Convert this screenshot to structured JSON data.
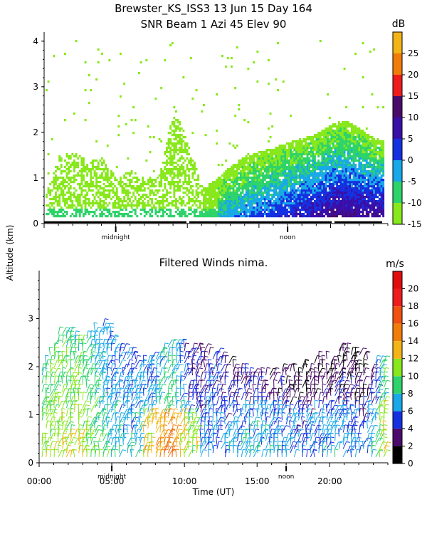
{
  "header": {
    "title_line1": "Brewster_KS_ISS3  13 Jun 15 Day 164",
    "title_line2": "SNR Beam  1 Azi   45 Elev 90"
  },
  "shared": {
    "ylabel": "Altitude (km)",
    "xlabel": "Time (UT)",
    "xticks": [
      {
        "v": 0,
        "label": "00:00"
      },
      {
        "v": 5,
        "label": "05:00"
      },
      {
        "v": 10,
        "label": "10:00"
      },
      {
        "v": 15,
        "label": "15:00"
      },
      {
        "v": 20,
        "label": "20:00"
      }
    ],
    "local_marks": [
      {
        "v": 5,
        "label": "midnight"
      },
      {
        "v": 17,
        "label": "noon"
      }
    ]
  },
  "chart_data": [
    {
      "type": "heatmap",
      "title": "SNR Beam  1 Azi   45 Elev 90",
      "xlim": [
        0,
        24
      ],
      "ylim": [
        0,
        4.2
      ],
      "yticks": [
        0,
        1,
        2,
        3,
        4
      ],
      "colorbar": {
        "unit": "dB",
        "min": -15,
        "max": 30,
        "ticks": [
          -15,
          -10,
          -5,
          0,
          5,
          10,
          15,
          20,
          25
        ],
        "bands": [
          {
            "from": -15,
            "to": -10,
            "color": "#88e81c"
          },
          {
            "from": -10,
            "to": -5,
            "color": "#2ed36a"
          },
          {
            "from": -5,
            "to": 0,
            "color": "#19a8e8"
          },
          {
            "from": 0,
            "to": 5,
            "color": "#1530e0"
          },
          {
            "from": 5,
            "to": 10,
            "color": "#3a0fa8"
          },
          {
            "from": 10,
            "to": 15,
            "color": "#4a0b6a"
          },
          {
            "from": 15,
            "to": 20,
            "color": "#ee1c1c"
          },
          {
            "from": 20,
            "to": 25,
            "color": "#f07d0a"
          },
          {
            "from": 25,
            "to": 30,
            "color": "#f2b416"
          }
        ]
      },
      "echo_top_km": [
        {
          "t": 0,
          "h": 0.6
        },
        {
          "t": 1,
          "h": 1.5
        },
        {
          "t": 2,
          "h": 1.6
        },
        {
          "t": 3,
          "h": 1.4
        },
        {
          "t": 4,
          "h": 1.5
        },
        {
          "t": 5,
          "h": 1.0
        },
        {
          "t": 6,
          "h": 1.2
        },
        {
          "t": 7,
          "h": 1.0
        },
        {
          "t": 8,
          "h": 1.1
        },
        {
          "t": 9,
          "h": 2.6
        },
        {
          "t": 10,
          "h": 1.8
        },
        {
          "t": 11,
          "h": 0.8
        },
        {
          "t": 12,
          "h": 1.0
        },
        {
          "t": 13,
          "h": 1.3
        },
        {
          "t": 14,
          "h": 1.5
        },
        {
          "t": 15,
          "h": 1.6
        },
        {
          "t": 16,
          "h": 1.7
        },
        {
          "t": 17,
          "h": 1.8
        },
        {
          "t": 18,
          "h": 1.9
        },
        {
          "t": 19,
          "h": 2.0
        },
        {
          "t": 20,
          "h": 2.2
        },
        {
          "t": 21,
          "h": 2.3
        },
        {
          "t": 22,
          "h": 2.1
        },
        {
          "t": 23,
          "h": 1.9
        },
        {
          "t": 24,
          "h": 1.8
        }
      ]
    },
    {
      "type": "scatter",
      "title": "Filtered Winds nima.",
      "xlim": [
        0,
        24
      ],
      "ylim": [
        0,
        4
      ],
      "yticks": [
        0,
        1,
        2,
        3
      ],
      "colorbar": {
        "unit": "m/s",
        "min": 0,
        "max": 22,
        "ticks": [
          0,
          2,
          4,
          6,
          8,
          10,
          12,
          14,
          16,
          18,
          20
        ],
        "bands": [
          {
            "from": 0,
            "to": 2,
            "color": "#000000"
          },
          {
            "from": 2,
            "to": 4,
            "color": "#4a0b6a"
          },
          {
            "from": 4,
            "to": 6,
            "color": "#1530e0"
          },
          {
            "from": 6,
            "to": 8,
            "color": "#19a8e8"
          },
          {
            "from": 8,
            "to": 10,
            "color": "#2ed36a"
          },
          {
            "from": 10,
            "to": 12,
            "color": "#88e81c"
          },
          {
            "from": 12,
            "to": 14,
            "color": "#f2b416"
          },
          {
            "from": 14,
            "to": 16,
            "color": "#f07d0a"
          },
          {
            "from": 16,
            "to": 18,
            "color": "#f05010"
          },
          {
            "from": 18,
            "to": 20,
            "color": "#ee1c1c"
          },
          {
            "from": 20,
            "to": 22,
            "color": "#e00e0e"
          }
        ]
      },
      "wind_field": [
        {
          "t": 0.3,
          "top": 2.0,
          "speed": 11
        },
        {
          "t": 1.5,
          "top": 2.8,
          "speed": 12
        },
        {
          "t": 3.0,
          "top": 2.6,
          "speed": 12
        },
        {
          "t": 4.5,
          "top": 2.9,
          "speed": 9
        },
        {
          "t": 6.0,
          "top": 2.3,
          "speed": 8
        },
        {
          "t": 7.5,
          "top": 2.1,
          "speed": 8
        },
        {
          "t": 9.0,
          "top": 2.5,
          "speed": 11
        },
        {
          "t": 10.5,
          "top": 2.4,
          "speed": 6
        },
        {
          "t": 12.0,
          "top": 2.3,
          "speed": 7
        },
        {
          "t": 13.5,
          "top": 2.0,
          "speed": 5
        },
        {
          "t": 15.0,
          "top": 1.8,
          "speed": 6
        },
        {
          "t": 16.5,
          "top": 1.9,
          "speed": 5
        },
        {
          "t": 18.0,
          "top": 2.0,
          "speed": 4
        },
        {
          "t": 19.5,
          "top": 2.2,
          "speed": 5
        },
        {
          "t": 21.0,
          "top": 2.4,
          "speed": 5
        },
        {
          "t": 22.5,
          "top": 2.2,
          "speed": 4
        },
        {
          "t": 23.7,
          "top": 2.1,
          "speed": 11
        }
      ]
    }
  ]
}
